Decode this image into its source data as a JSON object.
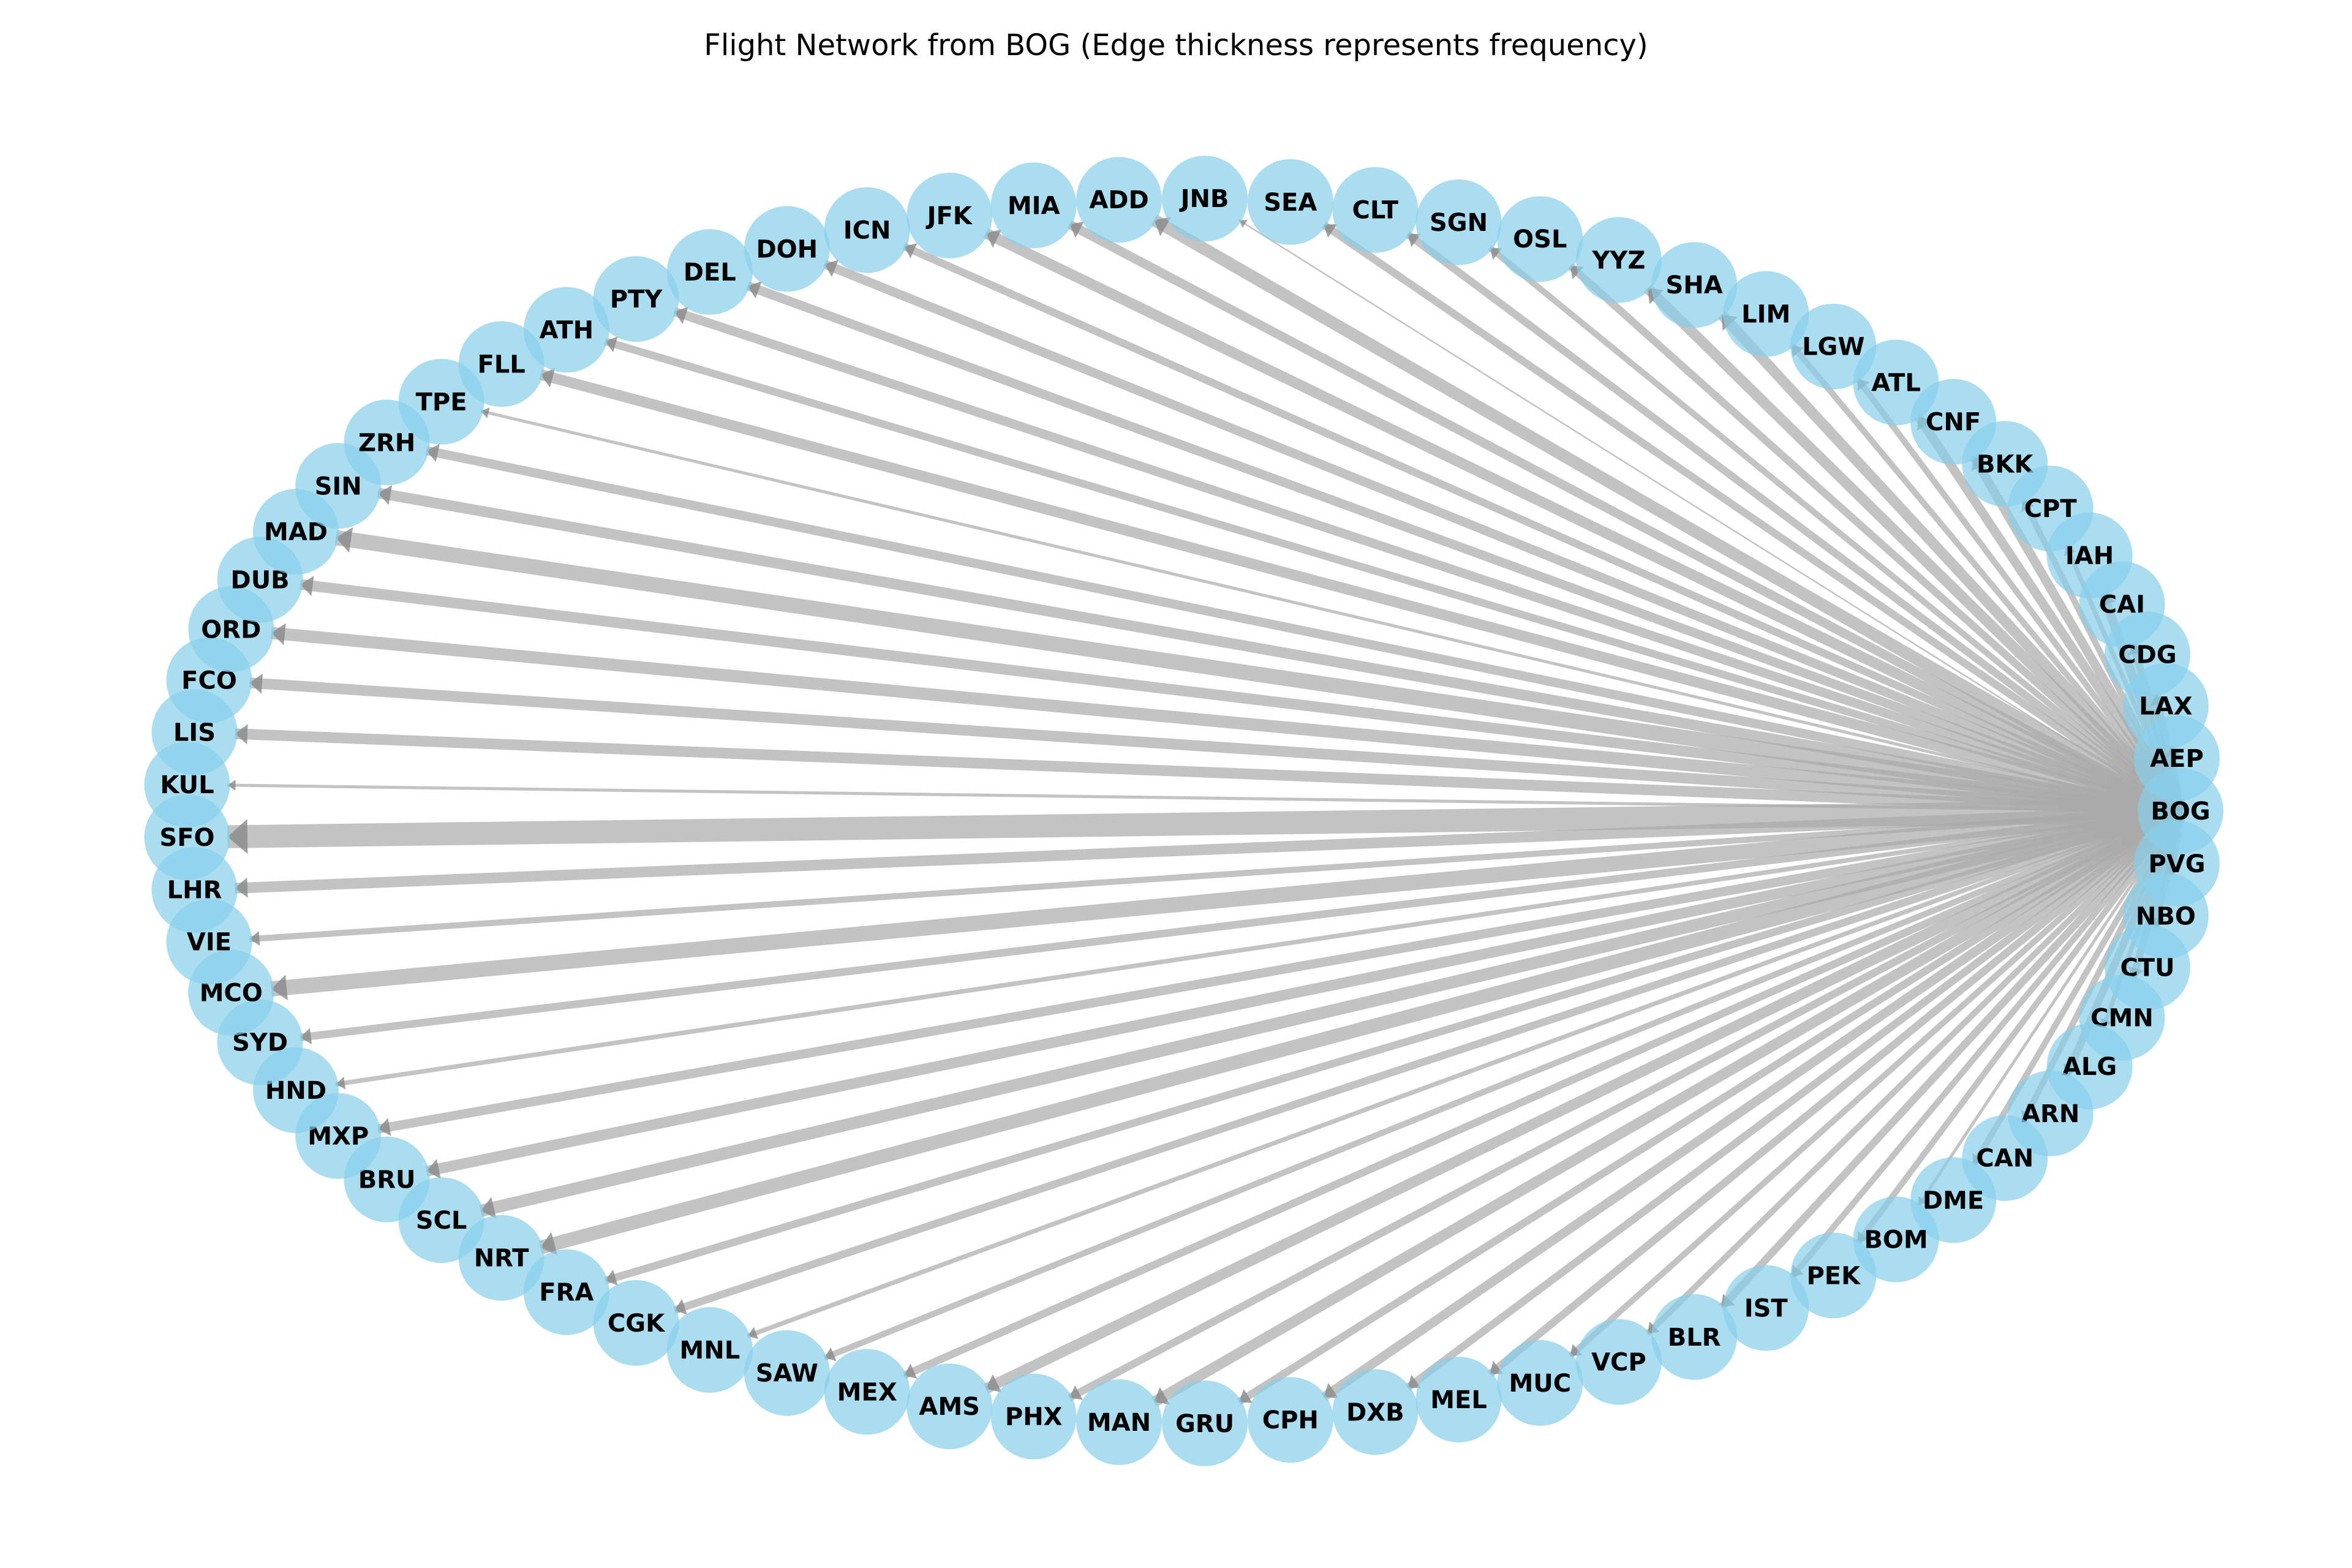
{
  "title": "Flight Network from BOG (Edge thickness represents frequency)",
  "colors": {
    "node_fill": "#87ceeb",
    "node_alpha": 0.7,
    "edge": "#a9a9a9",
    "edge_alpha": 0.7,
    "text": "#000000"
  },
  "hub": "BOG",
  "nodes": [
    "BOG",
    "PVG",
    "NBO",
    "CTU",
    "CMN",
    "ALG",
    "ARN",
    "CAN",
    "DME",
    "BOM",
    "PEK",
    "IST",
    "BLR",
    "VCP",
    "MUC",
    "MEL",
    "DXB",
    "CPH",
    "GRU",
    "MAN",
    "PHX",
    "AMS",
    "MEX",
    "SAW",
    "MNL",
    "CGK",
    "FRA",
    "NRT",
    "SCL",
    "BRU",
    "MXP",
    "HND",
    "SYD",
    "MCO",
    "VIE",
    "LHR",
    "SFO",
    "KUL",
    "LIS",
    "FCO",
    "ORD",
    "DUB",
    "MAD",
    "SIN",
    "ZRH",
    "TPE",
    "FLL",
    "ATH",
    "PTY",
    "DEL",
    "DOH",
    "ICN",
    "JFK",
    "MIA",
    "ADD",
    "JNB",
    "SEA",
    "CLT",
    "SGN",
    "OSL",
    "YYZ",
    "SHA",
    "LIM",
    "LGW",
    "ATL",
    "CNF",
    "BKK",
    "CPT",
    "IAH",
    "CAI",
    "CDG",
    "LAX",
    "AEP"
  ],
  "edge_frequency": {
    "PVG": 6,
    "NBO": 5,
    "CTU": 4,
    "CMN": 5,
    "ALG": 3,
    "ARN": 5,
    "CAN": 4,
    "DME": 4,
    "BOM": 2,
    "PEK": 4,
    "IST": 4,
    "BLR": 5,
    "VCP": 4,
    "MUC": 4,
    "MEL": 5,
    "DXB": 5,
    "CPH": 6,
    "GRU": 5,
    "MAN": 7,
    "PHX": 5,
    "AMS": 7,
    "MEX": 5,
    "SAW": 4,
    "MNL": 3,
    "CGK": 5,
    "FRA": 5,
    "NRT": 9,
    "SCL": 8,
    "BRU": 7,
    "MXP": 6,
    "HND": 3,
    "SYD": 5,
    "MCO": 10,
    "VIE": 4,
    "LHR": 7,
    "SFO": 15,
    "KUL": 2,
    "LIS": 7,
    "FCO": 7,
    "ORD": 8,
    "DUB": 7,
    "MAD": 10,
    "SIN": 7,
    "ZRH": 6,
    "TPE": 2,
    "FLL": 7,
    "ATH": 5,
    "PTY": 6,
    "DEL": 6,
    "DOH": 6,
    "ICN": 5,
    "JFK": 7,
    "MIA": 6,
    "ADD": 8,
    "JNB": 1,
    "SEA": 5,
    "CLT": 5,
    "SGN": 4,
    "OSL": 5,
    "YYZ": 7,
    "SHA": 7,
    "LIM": 4,
    "LGW": 4,
    "ATL": 6,
    "CNF": 6,
    "BKK": 4,
    "CPT": 3,
    "IAH": 6,
    "CAI": 5,
    "CDG": 5,
    "LAX": 4,
    "AEP": 6
  }
}
